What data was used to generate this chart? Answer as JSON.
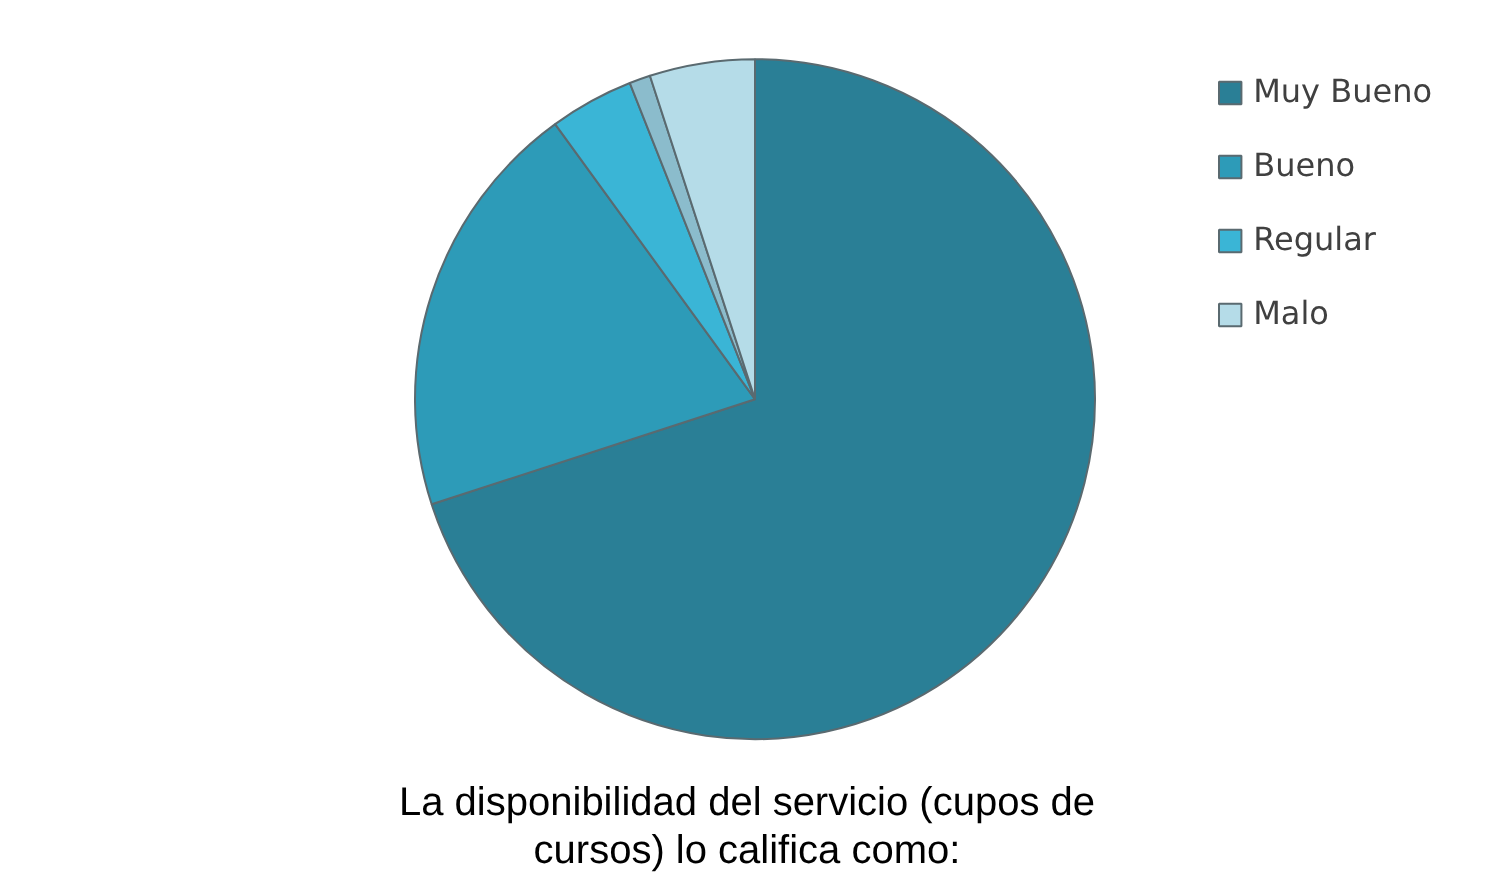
{
  "chart_data": {
    "type": "pie",
    "title": "La disponibilidad del servicio (cupos de cursos) lo califica como:",
    "categories": [
      "Muy Bueno",
      "Bueno",
      "Regular",
      null,
      "Malo"
    ],
    "values": [
      70,
      20,
      4,
      1,
      5
    ],
    "colors": [
      "#2a7f96",
      "#2d9bb8",
      "#3ab5d6",
      "#8bbccc",
      "#b5dce8"
    ],
    "legend": "top right"
  }
}
